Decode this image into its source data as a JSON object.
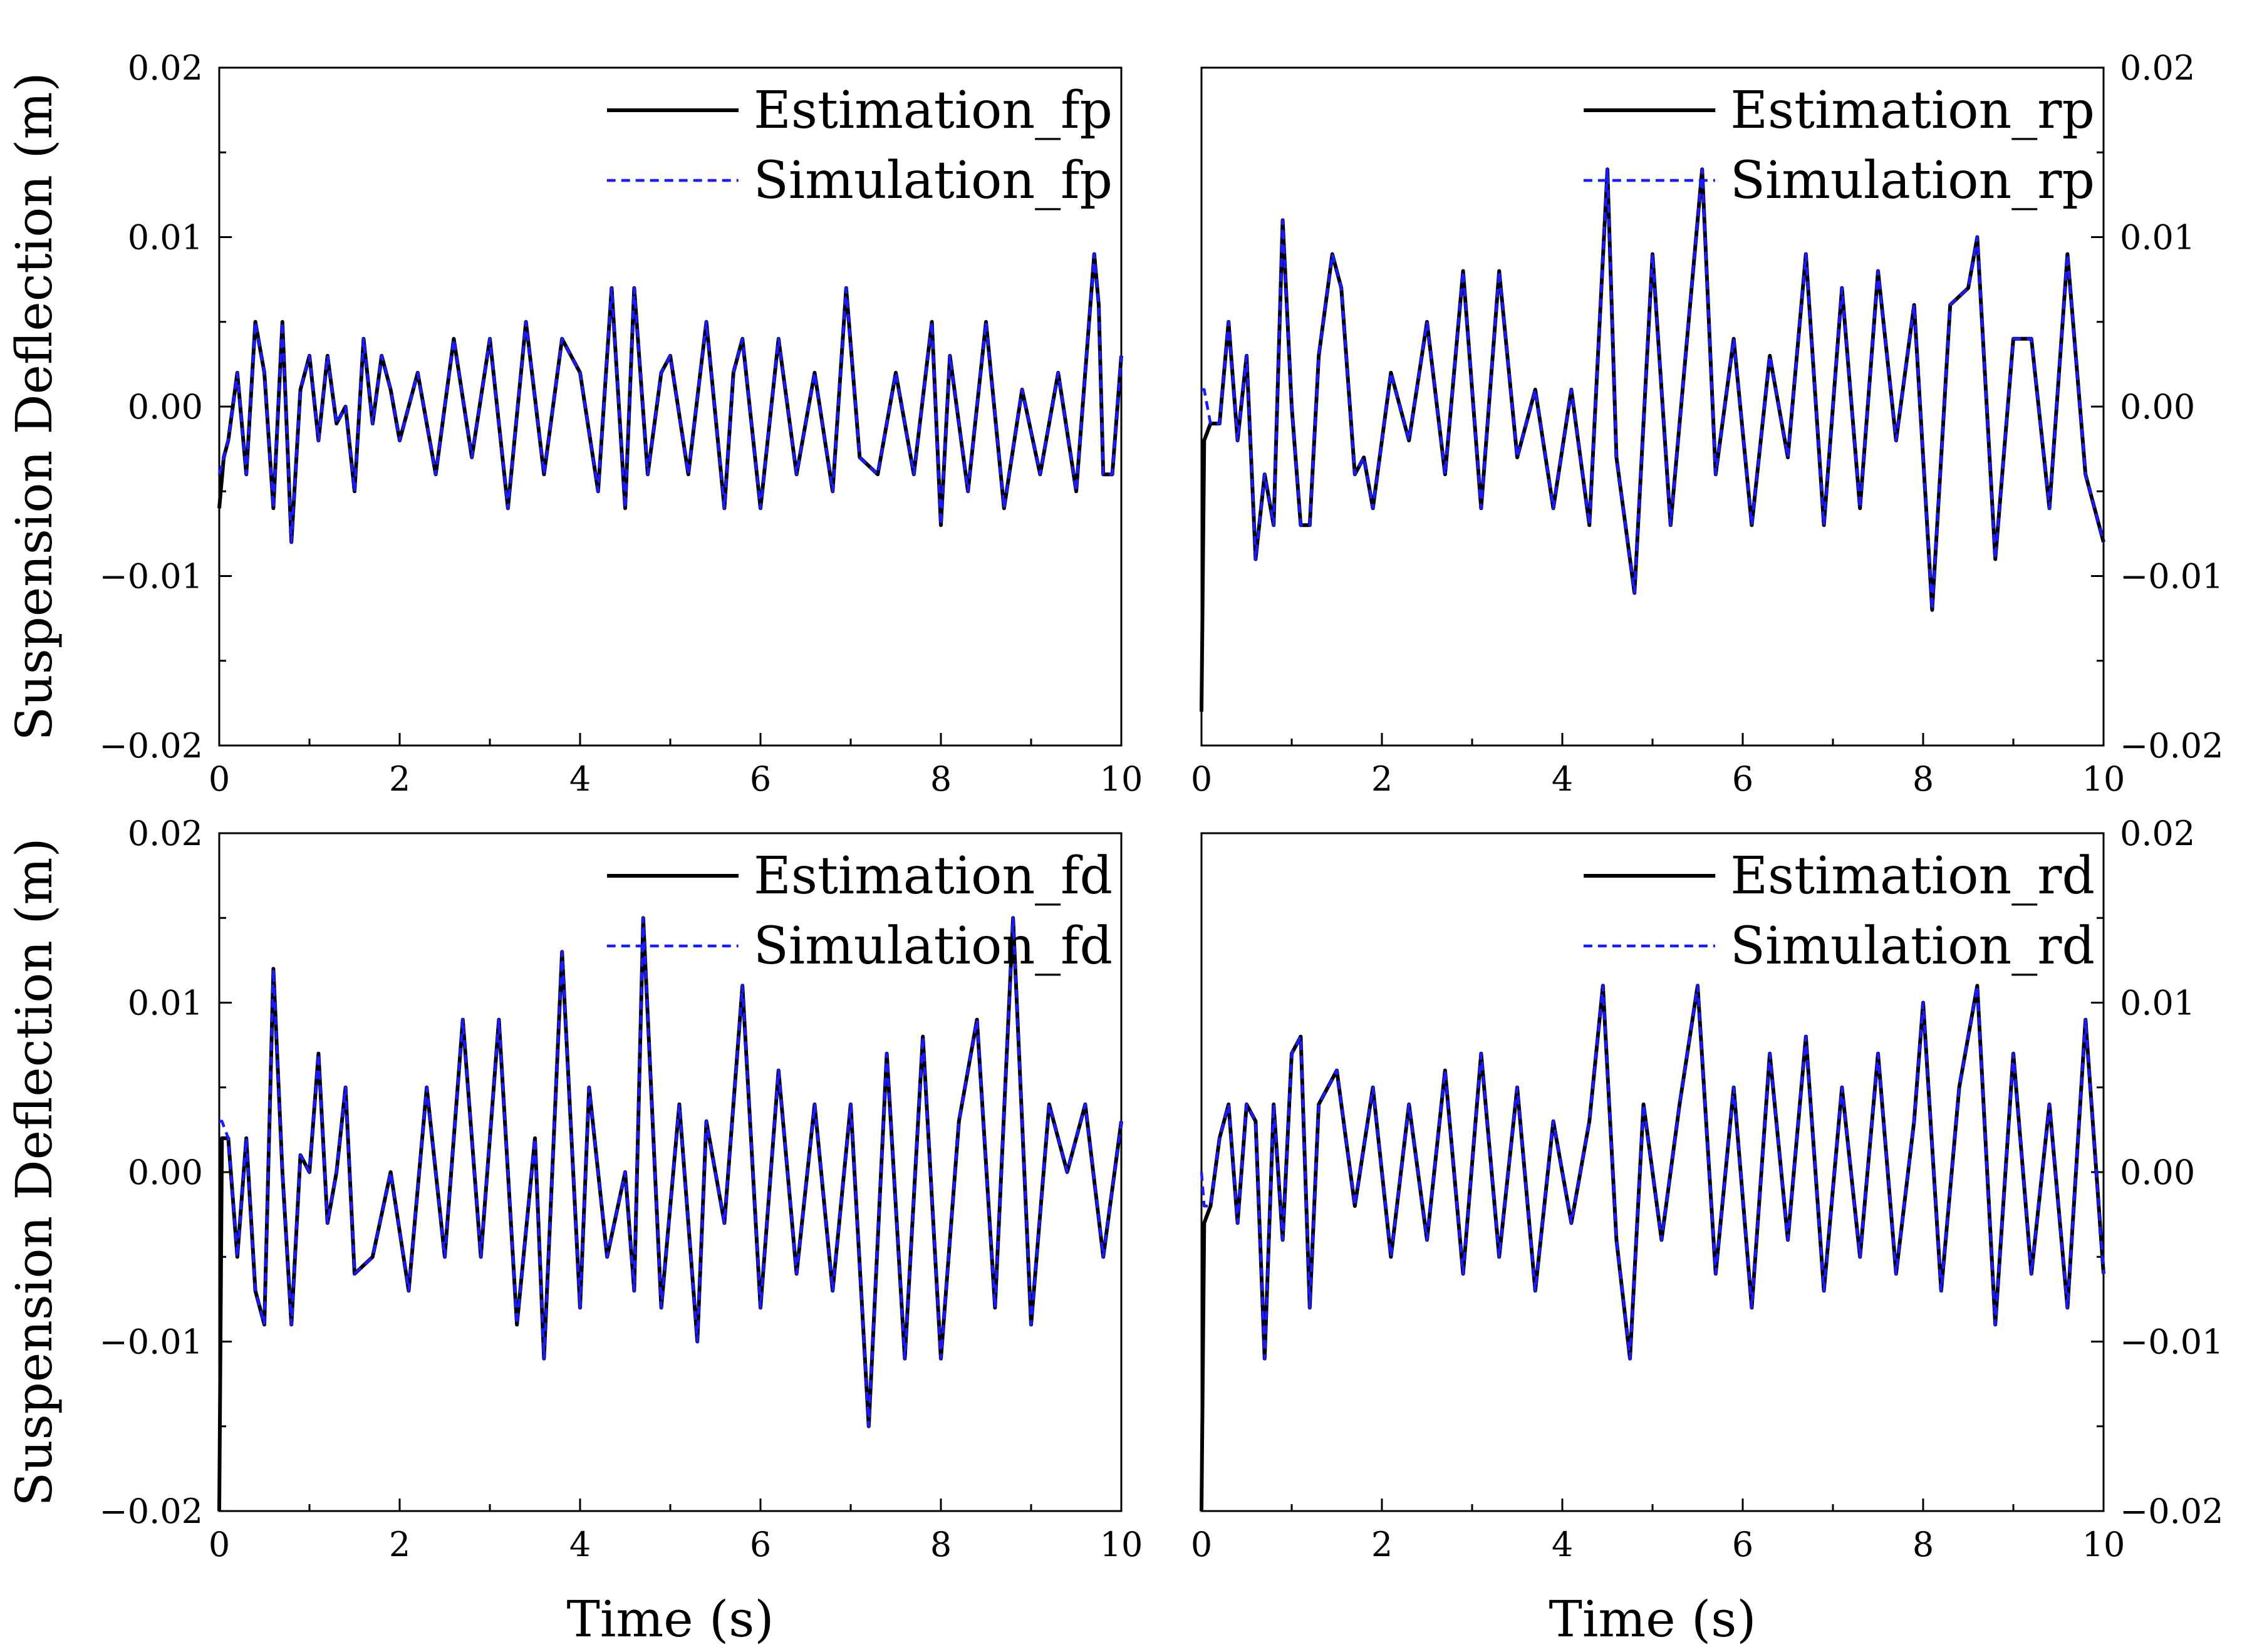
{
  "colors": {
    "estimation": "#000000",
    "simulation": "#1a1aff"
  },
  "chart_data": [
    {
      "type": "line",
      "panel": "top-left",
      "title": "",
      "xlabel": "",
      "ylabel": "Suspension Deflection (m)",
      "y_axis_side": "left",
      "xlim": [
        0,
        10
      ],
      "ylim": [
        -0.02,
        0.02
      ],
      "xticks": [
        "0",
        "2",
        "4",
        "6",
        "8",
        "10"
      ],
      "yticks": [
        "−0.02",
        "−0.01",
        "0.00",
        "0.01",
        "0.02"
      ],
      "legend_position": "top-right",
      "x": [
        0,
        0.05,
        0.1,
        0.15,
        0.2,
        0.3,
        0.4,
        0.5,
        0.6,
        0.7,
        0.8,
        0.9,
        1.0,
        1.1,
        1.2,
        1.3,
        1.4,
        1.5,
        1.6,
        1.7,
        1.8,
        1.9,
        2.0,
        2.2,
        2.4,
        2.6,
        2.8,
        3.0,
        3.2,
        3.4,
        3.6,
        3.8,
        4.0,
        4.2,
        4.35,
        4.5,
        4.6,
        4.75,
        4.9,
        5.0,
        5.2,
        5.4,
        5.6,
        5.7,
        5.8,
        6.0,
        6.2,
        6.4,
        6.6,
        6.8,
        6.95,
        7.1,
        7.3,
        7.5,
        7.7,
        7.9,
        8.0,
        8.1,
        8.3,
        8.5,
        8.7,
        8.9,
        9.1,
        9.3,
        9.5,
        9.7,
        9.75,
        9.8,
        9.9,
        10.0
      ],
      "series": [
        {
          "name": "Estimation_fp",
          "values": [
            -0.006,
            -0.003,
            -0.002,
            0.0,
            0.002,
            -0.004,
            0.005,
            0.002,
            -0.006,
            0.005,
            -0.008,
            0.001,
            0.003,
            -0.002,
            0.003,
            -0.001,
            0.0,
            -0.005,
            0.004,
            -0.001,
            0.003,
            0.001,
            -0.002,
            0.002,
            -0.004,
            0.004,
            -0.003,
            0.004,
            -0.006,
            0.005,
            -0.004,
            0.004,
            0.002,
            -0.005,
            0.007,
            -0.006,
            0.007,
            -0.004,
            0.002,
            0.003,
            -0.004,
            0.005,
            -0.006,
            0.002,
            0.004,
            -0.006,
            0.004,
            -0.004,
            0.002,
            -0.005,
            0.007,
            -0.003,
            -0.004,
            0.002,
            -0.004,
            0.005,
            -0.007,
            0.003,
            -0.005,
            0.005,
            -0.006,
            0.001,
            -0.004,
            0.002,
            -0.005,
            0.009,
            0.006,
            -0.004,
            -0.004,
            0.003
          ]
        },
        {
          "name": "Simulation_fp",
          "values": [
            -0.004,
            -0.003,
            -0.002,
            0.0,
            0.002,
            -0.004,
            0.005,
            0.002,
            -0.006,
            0.005,
            -0.008,
            0.001,
            0.003,
            -0.002,
            0.003,
            -0.001,
            0.0,
            -0.005,
            0.004,
            -0.001,
            0.003,
            0.001,
            -0.002,
            0.002,
            -0.004,
            0.004,
            -0.003,
            0.004,
            -0.006,
            0.005,
            -0.004,
            0.004,
            0.002,
            -0.005,
            0.007,
            -0.006,
            0.007,
            -0.004,
            0.002,
            0.003,
            -0.004,
            0.005,
            -0.006,
            0.002,
            0.004,
            -0.006,
            0.004,
            -0.004,
            0.002,
            -0.005,
            0.007,
            -0.003,
            -0.004,
            0.002,
            -0.004,
            0.005,
            -0.007,
            0.003,
            -0.005,
            0.005,
            -0.006,
            0.001,
            -0.004,
            0.002,
            -0.005,
            0.009,
            0.006,
            -0.004,
            -0.004,
            0.003
          ]
        }
      ]
    },
    {
      "type": "line",
      "panel": "top-right",
      "title": "",
      "xlabel": "",
      "ylabel": "",
      "y_axis_side": "right",
      "xlim": [
        0,
        10
      ],
      "ylim": [
        -0.02,
        0.02
      ],
      "xticks": [
        "0",
        "2",
        "4",
        "6",
        "8",
        "10"
      ],
      "yticks": [
        "−0.02",
        "−0.01",
        "0.00",
        "0.01",
        "0.02"
      ],
      "legend_position": "top-right",
      "x": [
        0,
        0.03,
        0.1,
        0.2,
        0.3,
        0.4,
        0.5,
        0.6,
        0.7,
        0.8,
        0.9,
        1.0,
        1.1,
        1.2,
        1.3,
        1.45,
        1.55,
        1.7,
        1.8,
        1.9,
        2.1,
        2.3,
        2.5,
        2.7,
        2.9,
        3.1,
        3.3,
        3.5,
        3.7,
        3.9,
        4.1,
        4.3,
        4.5,
        4.6,
        4.8,
        5.0,
        5.2,
        5.4,
        5.55,
        5.7,
        5.9,
        6.1,
        6.3,
        6.5,
        6.7,
        6.9,
        7.1,
        7.3,
        7.5,
        7.7,
        7.9,
        8.1,
        8.3,
        8.5,
        8.6,
        8.8,
        9.0,
        9.2,
        9.4,
        9.6,
        9.8,
        10.0
      ],
      "series": [
        {
          "name": "Estimation_rp",
          "values": [
            -0.018,
            -0.002,
            -0.001,
            -0.001,
            0.005,
            -0.002,
            0.003,
            -0.009,
            -0.004,
            -0.007,
            0.011,
            0.0,
            -0.007,
            -0.007,
            0.003,
            0.009,
            0.007,
            -0.004,
            -0.003,
            -0.006,
            0.002,
            -0.002,
            0.005,
            -0.004,
            0.008,
            -0.006,
            0.008,
            -0.003,
            0.001,
            -0.006,
            0.001,
            -0.007,
            0.014,
            -0.003,
            -0.011,
            0.009,
            -0.007,
            0.005,
            0.014,
            -0.004,
            0.004,
            -0.007,
            0.003,
            -0.003,
            0.009,
            -0.007,
            0.007,
            -0.006,
            0.008,
            -0.002,
            0.006,
            -0.012,
            0.006,
            0.007,
            0.01,
            -0.009,
            0.004,
            0.004,
            -0.006,
            0.009,
            -0.004,
            -0.008
          ]
        },
        {
          "name": "Simulation_rp",
          "values": [
            0.001,
            0.001,
            -0.001,
            -0.001,
            0.005,
            -0.002,
            0.003,
            -0.009,
            -0.004,
            -0.007,
            0.011,
            0.0,
            -0.007,
            -0.007,
            0.003,
            0.009,
            0.007,
            -0.004,
            -0.003,
            -0.006,
            0.002,
            -0.002,
            0.005,
            -0.004,
            0.008,
            -0.006,
            0.008,
            -0.003,
            0.001,
            -0.006,
            0.001,
            -0.007,
            0.014,
            -0.003,
            -0.011,
            0.009,
            -0.007,
            0.005,
            0.014,
            -0.004,
            0.004,
            -0.007,
            0.003,
            -0.003,
            0.009,
            -0.007,
            0.007,
            -0.006,
            0.008,
            -0.002,
            0.006,
            -0.012,
            0.006,
            0.007,
            0.01,
            -0.009,
            0.004,
            0.004,
            -0.006,
            0.009,
            -0.004,
            -0.008
          ]
        }
      ]
    },
    {
      "type": "line",
      "panel": "bottom-left",
      "title": "",
      "xlabel": "Time (s)",
      "ylabel": "Suspension Deflection (m)",
      "y_axis_side": "left",
      "xlim": [
        0,
        10
      ],
      "ylim": [
        -0.02,
        0.02
      ],
      "xticks": [
        "0",
        "2",
        "4",
        "6",
        "8",
        "10"
      ],
      "yticks": [
        "−0.02",
        "−0.01",
        "0.00",
        "0.01",
        "0.02"
      ],
      "legend_position": "top-right",
      "x": [
        0,
        0.03,
        0.1,
        0.2,
        0.3,
        0.4,
        0.5,
        0.6,
        0.7,
        0.8,
        0.9,
        1.0,
        1.1,
        1.2,
        1.3,
        1.4,
        1.5,
        1.7,
        1.9,
        2.1,
        2.3,
        2.5,
        2.7,
        2.9,
        3.1,
        3.3,
        3.5,
        3.6,
        3.8,
        4.0,
        4.1,
        4.3,
        4.5,
        4.6,
        4.7,
        4.9,
        5.1,
        5.3,
        5.4,
        5.6,
        5.8,
        6.0,
        6.2,
        6.4,
        6.6,
        6.8,
        7.0,
        7.2,
        7.4,
        7.6,
        7.8,
        8.0,
        8.2,
        8.4,
        8.6,
        8.8,
        9.0,
        9.2,
        9.4,
        9.6,
        9.8,
        10.0
      ],
      "series": [
        {
          "name": "Estimation_fd",
          "values": [
            -0.02,
            0.002,
            0.002,
            -0.005,
            0.002,
            -0.007,
            -0.009,
            0.012,
            0.0,
            -0.009,
            0.001,
            0.0,
            0.007,
            -0.003,
            0.0,
            0.005,
            -0.006,
            -0.005,
            0.0,
            -0.007,
            0.005,
            -0.005,
            0.009,
            -0.005,
            0.009,
            -0.009,
            0.002,
            -0.011,
            0.013,
            -0.008,
            0.005,
            -0.005,
            0.0,
            -0.007,
            0.015,
            -0.008,
            0.004,
            -0.01,
            0.003,
            -0.003,
            0.011,
            -0.008,
            0.006,
            -0.006,
            0.004,
            -0.007,
            0.004,
            -0.015,
            0.007,
            -0.011,
            0.008,
            -0.011,
            0.003,
            0.009,
            -0.008,
            0.015,
            -0.009,
            0.004,
            0.0,
            0.004,
            -0.005,
            0.003
          ]
        },
        {
          "name": "Simulation_fd",
          "values": [
            0.003,
            0.003,
            0.002,
            -0.005,
            0.002,
            -0.007,
            -0.009,
            0.012,
            0.0,
            -0.009,
            0.001,
            0.0,
            0.007,
            -0.003,
            0.0,
            0.005,
            -0.006,
            -0.005,
            0.0,
            -0.007,
            0.005,
            -0.005,
            0.009,
            -0.005,
            0.009,
            -0.009,
            0.002,
            -0.011,
            0.013,
            -0.008,
            0.005,
            -0.005,
            0.0,
            -0.007,
            0.015,
            -0.008,
            0.004,
            -0.01,
            0.003,
            -0.003,
            0.011,
            -0.008,
            0.006,
            -0.006,
            0.004,
            -0.007,
            0.004,
            -0.015,
            0.007,
            -0.011,
            0.008,
            -0.011,
            0.003,
            0.009,
            -0.008,
            0.015,
            -0.009,
            0.004,
            0.0,
            0.004,
            -0.005,
            0.003
          ]
        }
      ]
    },
    {
      "type": "line",
      "panel": "bottom-right",
      "title": "",
      "xlabel": "Time (s)",
      "ylabel": "",
      "y_axis_side": "right",
      "xlim": [
        0,
        10
      ],
      "ylim": [
        -0.02,
        0.02
      ],
      "xticks": [
        "0",
        "2",
        "4",
        "6",
        "8",
        "10"
      ],
      "yticks": [
        "−0.02",
        "−0.01",
        "0.00",
        "0.01",
        "0.02"
      ],
      "legend_position": "top-right",
      "x": [
        0,
        0.03,
        0.1,
        0.2,
        0.3,
        0.4,
        0.5,
        0.6,
        0.7,
        0.8,
        0.9,
        1.0,
        1.1,
        1.2,
        1.3,
        1.5,
        1.7,
        1.9,
        2.1,
        2.3,
        2.5,
        2.7,
        2.9,
        3.1,
        3.3,
        3.5,
        3.7,
        3.9,
        4.1,
        4.3,
        4.45,
        4.6,
        4.75,
        4.9,
        5.1,
        5.3,
        5.5,
        5.7,
        5.9,
        6.1,
        6.3,
        6.5,
        6.7,
        6.9,
        7.1,
        7.3,
        7.5,
        7.7,
        7.9,
        8.0,
        8.2,
        8.4,
        8.6,
        8.8,
        9.0,
        9.2,
        9.4,
        9.6,
        9.8,
        10.0
      ],
      "series": [
        {
          "name": "Estimation_rd",
          "values": [
            -0.02,
            -0.003,
            -0.002,
            0.002,
            0.004,
            -0.003,
            0.004,
            0.003,
            -0.011,
            0.004,
            -0.004,
            0.007,
            0.008,
            -0.008,
            0.004,
            0.006,
            -0.002,
            0.005,
            -0.005,
            0.004,
            -0.004,
            0.006,
            -0.006,
            0.007,
            -0.005,
            0.005,
            -0.007,
            0.003,
            -0.003,
            0.003,
            0.011,
            -0.004,
            -0.011,
            0.004,
            -0.004,
            0.004,
            0.011,
            -0.006,
            0.005,
            -0.008,
            0.007,
            -0.004,
            0.008,
            -0.007,
            0.005,
            -0.005,
            0.007,
            -0.006,
            0.003,
            0.01,
            -0.007,
            0.005,
            0.011,
            -0.009,
            0.007,
            -0.006,
            0.004,
            -0.008,
            0.009,
            -0.006
          ]
        },
        {
          "name": "Simulation_rd",
          "values": [
            0.0,
            -0.002,
            -0.002,
            0.002,
            0.004,
            -0.003,
            0.004,
            0.003,
            -0.011,
            0.004,
            -0.004,
            0.007,
            0.008,
            -0.008,
            0.004,
            0.006,
            -0.002,
            0.005,
            -0.005,
            0.004,
            -0.004,
            0.006,
            -0.006,
            0.007,
            -0.005,
            0.005,
            -0.007,
            0.003,
            -0.003,
            0.003,
            0.011,
            -0.004,
            -0.011,
            0.004,
            -0.004,
            0.004,
            0.011,
            -0.006,
            0.005,
            -0.008,
            0.007,
            -0.004,
            0.008,
            -0.007,
            0.005,
            -0.005,
            0.007,
            -0.006,
            0.003,
            0.01,
            -0.007,
            0.005,
            0.011,
            -0.009,
            0.007,
            -0.006,
            0.004,
            -0.008,
            0.009,
            -0.006
          ]
        }
      ]
    }
  ]
}
